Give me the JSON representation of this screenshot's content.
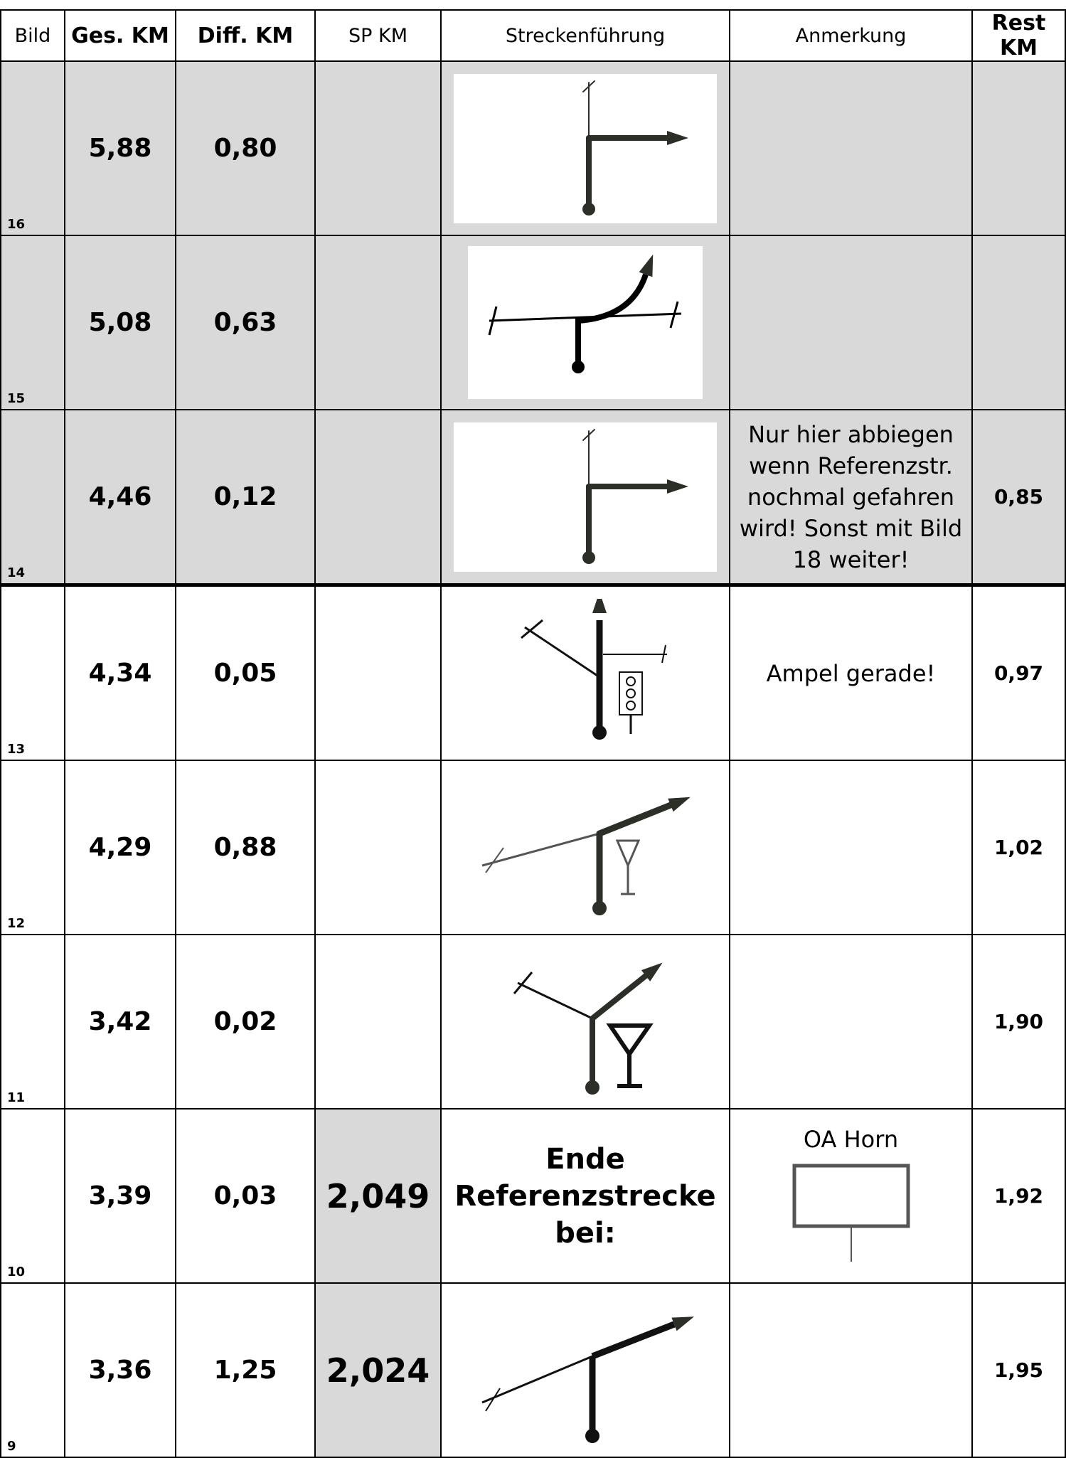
{
  "table": {
    "header": [
      "Bild",
      "Ges. KM",
      "Diff. KM",
      "SP KM",
      "Streckenführung",
      "Anmerkung",
      "Rest KM"
    ],
    "rows": [
      {
        "bild": "16",
        "ges_km": "5,88",
        "diff_km": "0,80"
      },
      {
        "bild": "15",
        "ges_km": "5,08",
        "diff_km": "0,63"
      },
      {
        "bild": "14",
        "ges_km": "4,46",
        "diff_km": "0,12",
        "anmerkung": "Nur hier abbiegen wenn Referenzstr. nochmal gefahren wird! Sonst  mit Bild 18  weiter!",
        "rest_km": "0,85"
      },
      {
        "bild": "13",
        "ges_km": "4,34",
        "diff_km": "0,05",
        "anmerkung": "Ampel gerade!",
        "rest_km": "0,97"
      },
      {
        "bild": "12",
        "ges_km": "4,29",
        "diff_km": "0,88",
        "rest_km": "1,02"
      },
      {
        "bild": "11",
        "ges_km": "3,42",
        "diff_km": "0,02",
        "rest_km": "1,90"
      },
      {
        "bild": "10",
        "ges_km": "3,39",
        "diff_km": "0,03",
        "sp_km": "2,049",
        "strecke": "Ende Referenzstrecke bei:",
        "anmerkung": "OA Horn",
        "rest_km": "1,92"
      },
      {
        "bild": "9",
        "ges_km": "3,36",
        "diff_km": "1,25",
        "sp_km": "2,024",
        "rest_km": "1,95"
      }
    ]
  }
}
